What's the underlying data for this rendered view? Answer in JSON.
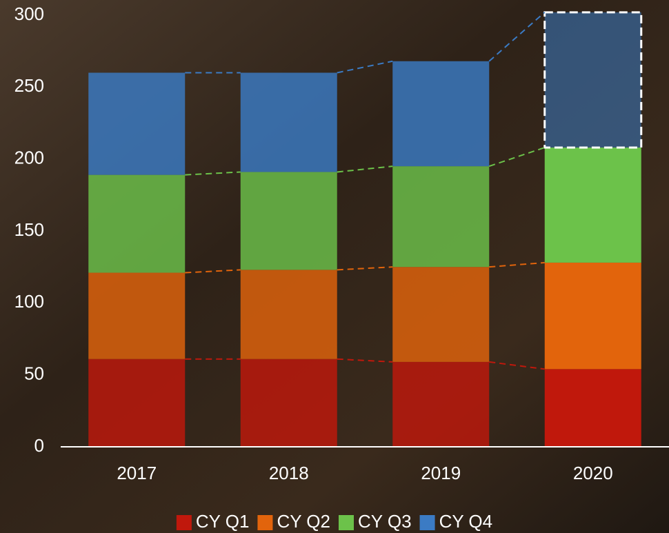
{
  "chart_data": {
    "type": "stacked-bar",
    "categories": [
      "2017",
      "2018",
      "2019",
      "2020"
    ],
    "series": [
      {
        "name": "CY Q1",
        "color": "#c0180c",
        "values": [
          61,
          61,
          59,
          54
        ]
      },
      {
        "name": "CY Q2",
        "color": "#e2640c",
        "values": [
          60,
          62,
          66,
          74
        ]
      },
      {
        "name": "CY Q3",
        "color": "#6cc24a",
        "values": [
          68,
          68,
          70,
          80
        ]
      },
      {
        "name": "CY Q4",
        "color": "#3b7bc4",
        "values": [
          71,
          69,
          73,
          94
        ]
      }
    ],
    "ylim": [
      0,
      300
    ],
    "yticks": [
      0,
      50,
      100,
      150,
      200,
      250,
      300
    ],
    "grid": false,
    "legend": "bottom"
  }
}
